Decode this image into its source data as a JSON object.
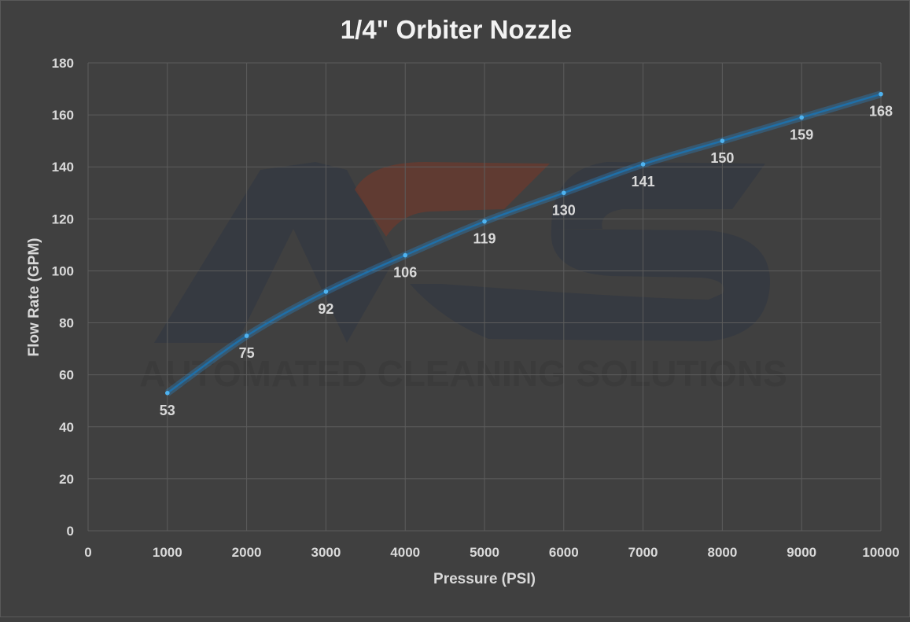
{
  "chart_data": {
    "type": "line",
    "title": "1/4\" Orbiter Nozzle",
    "xlabel": "Pressure (PSI)",
    "ylabel": "Flow Rate (GPM)",
    "xlim": [
      0,
      10000
    ],
    "ylim": [
      0,
      180
    ],
    "x_ticks": [
      0,
      1000,
      2000,
      3000,
      4000,
      5000,
      6000,
      7000,
      8000,
      9000,
      10000
    ],
    "y_ticks": [
      0,
      20,
      40,
      60,
      80,
      100,
      120,
      140,
      160,
      180
    ],
    "grid": true,
    "legend": "none",
    "series": [
      {
        "x": [
          1000,
          2000,
          3000,
          4000,
          5000,
          6000,
          7000,
          8000,
          9000,
          10000
        ],
        "values": [
          53,
          75,
          92,
          106,
          119,
          130,
          141,
          150,
          159,
          168
        ],
        "color": "#1f6fa8",
        "marker_color": "#4fb3f0"
      }
    ]
  },
  "watermark": {
    "text": "AUTOMATED CLEANING SOLUTIONS",
    "colors": {
      "dark": "#353a42",
      "accent": "#6b3a2e"
    }
  },
  "colors": {
    "background": "#404040",
    "gridline": "#5c5c5c",
    "text": "#d9d9d9"
  }
}
